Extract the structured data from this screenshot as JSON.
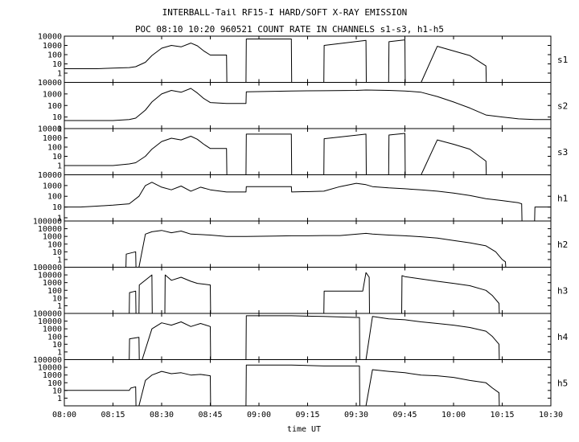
{
  "chart_data": {
    "type": "line",
    "title": "INTERBALL-Tail RF15-I HARD/SOFT X-RAY EMISSION",
    "subtitle": "POC 08:10 10:20 960521  COUNT RATE IN CHANNELS s1-s3, h1-h5",
    "xlabel": "time UT",
    "x_unit": "minutes after 08:00 UT",
    "xlim": [
      0,
      150
    ],
    "x_ticks": [
      0,
      15,
      30,
      45,
      60,
      75,
      90,
      105,
      120,
      135,
      150
    ],
    "x_tick_labels": [
      "08:00",
      "08:15",
      "08:30",
      "08:45",
      "09:00",
      "09:15",
      "09:30",
      "09:45",
      "10:00",
      "10:15",
      "10:30"
    ],
    "y_scale": "log",
    "grid": false,
    "legend": "none",
    "panels": [
      {
        "name": "s1",
        "ylim": [
          0.1,
          10000
        ],
        "y_ticks": [
          1,
          10,
          100,
          1000,
          10000
        ],
        "y_tick_labels": [
          "1",
          "10",
          "100",
          "1000",
          "10000"
        ],
        "x": [
          0,
          5,
          10,
          15,
          20,
          22,
          25,
          27,
          30,
          33,
          36,
          39,
          41,
          43,
          45,
          50,
          50.1,
          56,
          56.1,
          70,
          70.1,
          80,
          80.1,
          93,
          93.1,
          100,
          100.1,
          105,
          105.1,
          110,
          115,
          120,
          125,
          130,
          130.1,
          150
        ],
        "values": [
          3,
          3,
          3,
          3.5,
          4,
          5,
          15,
          80,
          500,
          1000,
          700,
          1800,
          900,
          250,
          90,
          90,
          0.1,
          0.1,
          5000,
          5000,
          0.1,
          0.1,
          1000,
          3500,
          0.1,
          0.1,
          2500,
          4000,
          0.1,
          0.1,
          800,
          250,
          80,
          6,
          0.1,
          0.1
        ]
      },
      {
        "name": "s2",
        "ylim": [
          1,
          10000
        ],
        "y_ticks": [
          1,
          10,
          100,
          1000,
          10000
        ],
        "y_tick_labels": [
          "1",
          "10",
          "100",
          "1000",
          "10000"
        ],
        "x": [
          0,
          5,
          10,
          15,
          20,
          22,
          25,
          27,
          30,
          33,
          36,
          39,
          41,
          43,
          45,
          50,
          56,
          56.1,
          70,
          80,
          90,
          93,
          100,
          105,
          110,
          115,
          120,
          125,
          130,
          135,
          140,
          145,
          150
        ],
        "values": [
          5,
          5,
          5,
          5,
          6,
          8,
          40,
          200,
          1000,
          2000,
          1400,
          3000,
          1200,
          400,
          180,
          150,
          150,
          1500,
          1800,
          1900,
          2000,
          2200,
          2000,
          1800,
          1400,
          600,
          200,
          60,
          15,
          10,
          7,
          6,
          6
        ]
      },
      {
        "name": "s3",
        "ylim": [
          0.1,
          10000
        ],
        "y_ticks": [
          1,
          10,
          100,
          1000,
          10000
        ],
        "y_tick_labels": [
          "1",
          "10",
          "100",
          "1000",
          "10000"
        ],
        "x": [
          0,
          5,
          10,
          15,
          20,
          22,
          25,
          27,
          30,
          33,
          36,
          39,
          41,
          43,
          45,
          50,
          50.1,
          56,
          56.1,
          70,
          70.1,
          80,
          80.1,
          93,
          93.1,
          100,
          100.1,
          105,
          105.1,
          110,
          115,
          120,
          125,
          130,
          130.1,
          150
        ],
        "values": [
          1,
          1,
          1,
          1,
          1.5,
          2,
          10,
          60,
          400,
          900,
          600,
          1500,
          700,
          200,
          70,
          70,
          0.1,
          0.1,
          2500,
          2500,
          0.1,
          0.1,
          800,
          2500,
          0.1,
          0.1,
          2000,
          3000,
          0.1,
          0.1,
          600,
          200,
          60,
          3,
          0.1,
          0.1
        ]
      },
      {
        "name": "h1",
        "ylim": [
          0.5,
          10000
        ],
        "y_ticks": [
          1,
          10,
          100,
          1000,
          10000
        ],
        "y_tick_labels": [
          "1",
          "10",
          "100",
          "1000",
          "10000"
        ],
        "x": [
          0,
          5,
          10,
          15,
          20,
          23,
          25,
          27,
          30,
          33,
          36,
          39,
          42,
          45,
          50,
          56,
          56.1,
          70,
          70.1,
          80,
          85,
          90,
          93,
          95,
          100,
          105,
          110,
          115,
          120,
          125,
          130,
          135,
          140,
          141,
          141.1,
          145,
          145.1,
          150
        ],
        "values": [
          10,
          10,
          12,
          15,
          20,
          100,
          1000,
          2000,
          700,
          400,
          900,
          300,
          700,
          400,
          250,
          250,
          800,
          800,
          250,
          300,
          800,
          1600,
          1200,
          800,
          600,
          500,
          400,
          300,
          200,
          120,
          60,
          40,
          25,
          20,
          0.5,
          0.5,
          10,
          10
        ]
      },
      {
        "name": "h2",
        "ylim": [
          0.1,
          100000
        ],
        "y_ticks": [
          1,
          10,
          100,
          1000,
          10000,
          100000
        ],
        "y_tick_labels": [
          "1",
          "10",
          "100",
          "1000",
          "10000",
          "100000"
        ],
        "x": [
          0,
          19,
          19.1,
          22,
          22.1,
          23,
          25,
          27,
          30,
          33,
          36,
          39,
          45,
          50,
          56,
          65,
          70,
          75,
          80,
          85,
          93,
          95,
          100,
          105,
          110,
          115,
          120,
          125,
          130,
          133,
          135,
          136,
          136.1,
          150
        ],
        "values": [
          0.1,
          0.1,
          5,
          10,
          0.1,
          0.1,
          2000,
          4000,
          6000,
          3000,
          5000,
          2000,
          1500,
          1000,
          1000,
          1100,
          1200,
          1200,
          1300,
          1300,
          2500,
          2000,
          1500,
          1200,
          900,
          600,
          300,
          150,
          60,
          10,
          1,
          0.5,
          0.1,
          0.1
        ]
      },
      {
        "name": "h3",
        "ylim": [
          0.1,
          100000
        ],
        "y_ticks": [
          1,
          10,
          100,
          1000,
          10000,
          100000
        ],
        "y_tick_labels": [
          "1",
          "10",
          "100",
          "1000",
          "10000",
          "100000"
        ],
        "x": [
          0,
          20,
          20.1,
          22,
          22.1,
          23,
          23.1,
          27,
          27.1,
          31,
          31.1,
          33,
          36,
          39,
          41,
          45,
          45.1,
          80,
          80.1,
          92,
          93,
          94,
          94.1,
          104,
          104.1,
          105,
          110,
          115,
          120,
          125,
          130,
          132,
          134,
          134.1,
          150
        ],
        "values": [
          0.1,
          0.1,
          50,
          80,
          0.1,
          0.1,
          500,
          10000,
          0.1,
          0.1,
          10000,
          2000,
          5000,
          1500,
          800,
          500,
          0.1,
          0.1,
          80,
          80,
          20000,
          5000,
          0.1,
          0.1,
          8000,
          6000,
          3000,
          1500,
          800,
          400,
          100,
          20,
          2,
          0.1,
          0.1
        ]
      },
      {
        "name": "h4",
        "ylim": [
          0.1,
          100000
        ],
        "y_ticks": [
          1,
          10,
          100,
          1000,
          10000,
          100000
        ],
        "y_tick_labels": [
          "1",
          "10",
          "100",
          "1000",
          "10000",
          "100000"
        ],
        "x": [
          0,
          20,
          20.1,
          23,
          23.1,
          24,
          27,
          30,
          33,
          36,
          39,
          42,
          45,
          45.1,
          56,
          56.1,
          70,
          80,
          90,
          91,
          91.1,
          93,
          95,
          100,
          105,
          110,
          115,
          120,
          125,
          130,
          132,
          134,
          134.1,
          150
        ],
        "values": [
          0.1,
          0.1,
          50,
          80,
          0.1,
          0.1,
          1000,
          6000,
          3000,
          8000,
          2000,
          5000,
          2000,
          0.1,
          0.1,
          50000,
          50000,
          40000,
          30000,
          30000,
          0.1,
          0.1,
          40000,
          20000,
          15000,
          8000,
          5000,
          3000,
          1500,
          500,
          100,
          10,
          0.1,
          0.1
        ]
      },
      {
        "name": "h5",
        "ylim": [
          0.1,
          100000
        ],
        "y_ticks": [
          1,
          10,
          100,
          1000,
          10000,
          100000
        ],
        "y_tick_labels": [
          "1",
          "10",
          "100",
          "1000",
          "10000",
          "100000"
        ],
        "x": [
          0,
          20,
          20.5,
          22,
          22.1,
          23,
          25,
          27,
          30,
          33,
          36,
          39,
          42,
          45,
          45.1,
          56,
          56.1,
          70,
          80,
          90,
          91,
          91.1,
          93,
          95,
          100,
          105,
          110,
          115,
          120,
          125,
          130,
          132,
          134,
          134.1,
          150
        ],
        "values": [
          10,
          10,
          20,
          30,
          0.1,
          0.1,
          200,
          1000,
          3000,
          1500,
          2000,
          1000,
          1200,
          800,
          0.1,
          0.1,
          20000,
          20000,
          15000,
          15000,
          15000,
          0.1,
          0.1,
          5000,
          3000,
          2000,
          1000,
          800,
          500,
          200,
          100,
          20,
          5,
          0.1,
          0.1
        ]
      }
    ]
  }
}
